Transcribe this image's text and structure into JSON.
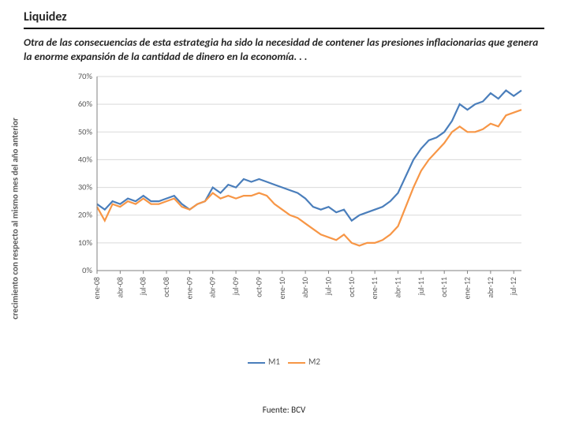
{
  "title": "Liquidez",
  "subtitle": "Otra de las consecuencias de esta estrategia ha sido la necesidad de contener las presiones inflacionarias que genera la enorme expansión de la cantidad de dinero en la economía. . .",
  "source": "Fuente: BCV",
  "chart": {
    "type": "line",
    "y_axis_title": "crecimiento con respecto al mismo mes del año anterior",
    "ylim": [
      0,
      70
    ],
    "ytick_step": 10,
    "ytick_format_suffix": "%",
    "background_color": "#ffffff",
    "grid_color": "#d9d9d9",
    "axis_color": "#808080",
    "line_width": 2.2,
    "x_labels": [
      "ene-08",
      "abr-08",
      "jul-08",
      "oct-08",
      "ene-09",
      "abr-09",
      "jul-09",
      "oct-09",
      "ene-10",
      "abr-10",
      "jul-10",
      "oct-10",
      "ene-11",
      "abr-11",
      "jul-11",
      "oct-11",
      "ene-12",
      "abr-12",
      "jul-12"
    ],
    "series": [
      {
        "name": "M1",
        "color": "#4a7ebb",
        "values": [
          24,
          22,
          25,
          24,
          26,
          25,
          27,
          25,
          25,
          26,
          27,
          24,
          22,
          24,
          25,
          30,
          28,
          31,
          30,
          33,
          32,
          33,
          32,
          31,
          30,
          29,
          28,
          26,
          23,
          22,
          23,
          21,
          22,
          18,
          20,
          21,
          22,
          23,
          25,
          28,
          34,
          40,
          44,
          47,
          48,
          50,
          54,
          60,
          58,
          60,
          61,
          64,
          62,
          65,
          63,
          65
        ]
      },
      {
        "name": "M2",
        "color": "#f79646",
        "values": [
          23,
          18,
          24,
          23,
          25,
          24,
          26,
          24,
          24,
          25,
          26,
          23,
          22,
          24,
          25,
          28,
          26,
          27,
          26,
          27,
          27,
          28,
          27,
          24,
          22,
          20,
          19,
          17,
          15,
          13,
          12,
          11,
          13,
          10,
          9,
          10,
          10,
          11,
          13,
          16,
          23,
          30,
          36,
          40,
          43,
          46,
          50,
          52,
          50,
          50,
          51,
          53,
          52,
          56,
          57,
          58
        ]
      }
    ],
    "legend_position": "bottom-center",
    "label_color": "#595959",
    "label_fontsize": 10.5,
    "x_label_fontsize": 10
  }
}
